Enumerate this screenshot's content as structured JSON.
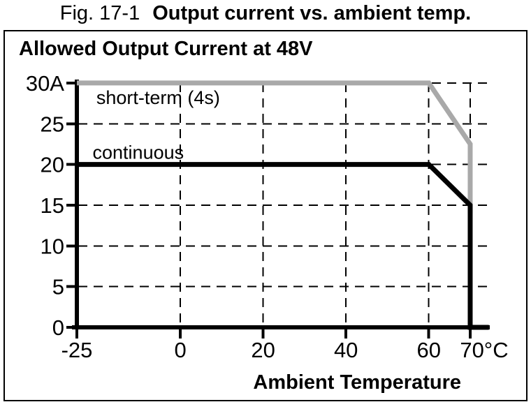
{
  "caption": {
    "number": "Fig. 17-1",
    "title": "Output current vs. ambient temp."
  },
  "panel": {
    "title": "Allowed Output Current at 48V"
  },
  "chart_data": {
    "type": "line",
    "title": "Allowed Output Current at 48V",
    "xlabel": "Ambient Temperature",
    "ylabel": "",
    "xlim": [
      -25,
      75
    ],
    "ylim": [
      0,
      30
    ],
    "grid": {
      "style": "dashed",
      "x_values": [
        0,
        20,
        40,
        60,
        70
      ],
      "y_values": [
        5,
        10,
        15,
        20,
        25,
        30
      ]
    },
    "x_ticks": [
      {
        "value": -25,
        "label": "-25",
        "offset": 0
      },
      {
        "value": 0,
        "label": "0",
        "offset": 0
      },
      {
        "value": 20,
        "label": "20",
        "offset": 0
      },
      {
        "value": 40,
        "label": "40",
        "offset": 0
      },
      {
        "value": 60,
        "label": "60",
        "offset": 0
      },
      {
        "value": 70,
        "label": "70°C",
        "offset": 20
      }
    ],
    "y_ticks": [
      {
        "value": 0,
        "label": "0"
      },
      {
        "value": 5,
        "label": "5"
      },
      {
        "value": 10,
        "label": "10"
      },
      {
        "value": 15,
        "label": "15"
      },
      {
        "value": 20,
        "label": "20"
      },
      {
        "value": 25,
        "label": "25"
      },
      {
        "value": 30,
        "label": "30A"
      }
    ],
    "series": [
      {
        "name": "short-term (4s)",
        "color": "#a9a9a9",
        "points": [
          [
            -25,
            30
          ],
          [
            60,
            30
          ],
          [
            70,
            22.5
          ],
          [
            70,
            14
          ]
        ],
        "label_pos": [
          -20.3,
          27.4
        ]
      },
      {
        "name": "continuous",
        "color": "#000000",
        "points": [
          [
            -25,
            20
          ],
          [
            60,
            20
          ],
          [
            70,
            15
          ],
          [
            70,
            0
          ],
          [
            74.5,
            0
          ]
        ],
        "label_pos": [
          -21.2,
          20.7
        ]
      }
    ],
    "legend_position": "inline-labels"
  }
}
